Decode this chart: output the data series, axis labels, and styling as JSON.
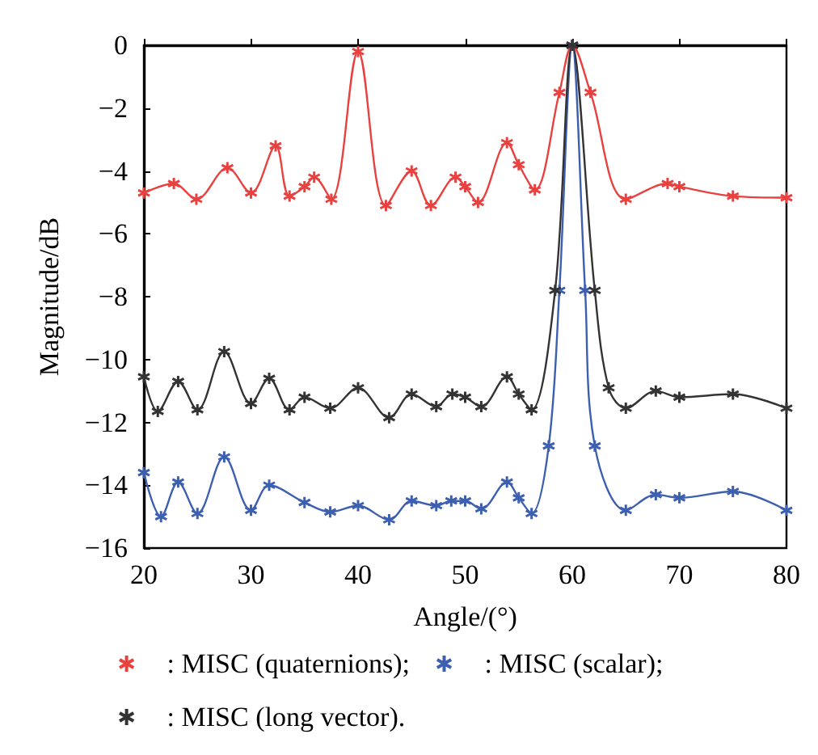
{
  "chart_data": {
    "type": "line",
    "xlabel": "Angle/(°)",
    "ylabel": "Magnitude/dB",
    "xlim": [
      20,
      80
    ],
    "xticks": [
      20,
      30,
      40,
      50,
      60,
      70,
      80
    ],
    "ylim": [
      -16,
      0
    ],
    "yticks": [
      -16,
      -14,
      -12,
      -10,
      -8,
      -6,
      -4,
      -2,
      0
    ],
    "grid": false,
    "legend": "bottom",
    "marker": "cross",
    "line_style": "solid",
    "series": [
      {
        "name": ": MISC (quaternions);",
        "color": "#e8413f",
        "x": [
          20,
          22.8,
          24.9,
          27.8,
          30,
          32.3,
          33.6,
          35,
          35.9,
          37.5,
          40,
          42.6,
          45,
          46.8,
          49.1,
          50,
          51.2,
          53.9,
          55,
          56.5,
          58.8,
          60,
          61.7,
          65,
          68.9,
          70,
          75,
          80
        ],
        "values": [
          -4.7,
          -4.4,
          -4.9,
          -3.9,
          -4.7,
          -3.2,
          -4.8,
          -4.5,
          -4.2,
          -4.9,
          -0.2,
          -5.1,
          -4,
          -5.1,
          -4.2,
          -4.5,
          -5,
          -3.1,
          -3.8,
          -4.6,
          -1.5,
          0,
          -1.5,
          -4.9,
          -4.4,
          -4.5,
          -4.8,
          -4.85
        ]
      },
      {
        "name": ": MISC (scalar);",
        "color": "#3d5fb0",
        "x": [
          20,
          21.6,
          23.2,
          25,
          27.5,
          30,
          31.7,
          35,
          37.4,
          40,
          42.9,
          45,
          47.3,
          48.7,
          50,
          51.5,
          53.9,
          55,
          56.2,
          57.8,
          58.8,
          60,
          61.2,
          62.1,
          65,
          67.8,
          70,
          75,
          80
        ],
        "values": [
          -13.6,
          -15,
          -13.9,
          -14.9,
          -13.1,
          -14.8,
          -14,
          -14.55,
          -14.85,
          -14.65,
          -15.1,
          -14.5,
          -14.65,
          -14.5,
          -14.5,
          -14.75,
          -13.9,
          -14.4,
          -14.9,
          -12.75,
          -7.8,
          0,
          -7.8,
          -12.75,
          -14.8,
          -14.3,
          -14.4,
          -14.2,
          -14.8
        ]
      },
      {
        "name": ": MISC (long vector).",
        "color": "#333333",
        "x": [
          20,
          21.3,
          23.2,
          25,
          27.5,
          30,
          31.7,
          33.6,
          35,
          37.4,
          40,
          42.9,
          45,
          47.3,
          48.8,
          50,
          51.5,
          53.9,
          55,
          56.2,
          58.4,
          60,
          62.1,
          63.4,
          65,
          67.8,
          70,
          75,
          80
        ],
        "values": [
          -10.55,
          -11.65,
          -10.7,
          -11.6,
          -9.75,
          -11.4,
          -10.6,
          -11.6,
          -11.2,
          -11.55,
          -10.9,
          -11.85,
          -11.1,
          -11.5,
          -11.1,
          -11.2,
          -11.5,
          -10.55,
          -11.1,
          -11.6,
          -7.8,
          0,
          -7.8,
          -10.9,
          -11.55,
          -11,
          -11.2,
          -11.1,
          -11.55
        ]
      }
    ]
  }
}
